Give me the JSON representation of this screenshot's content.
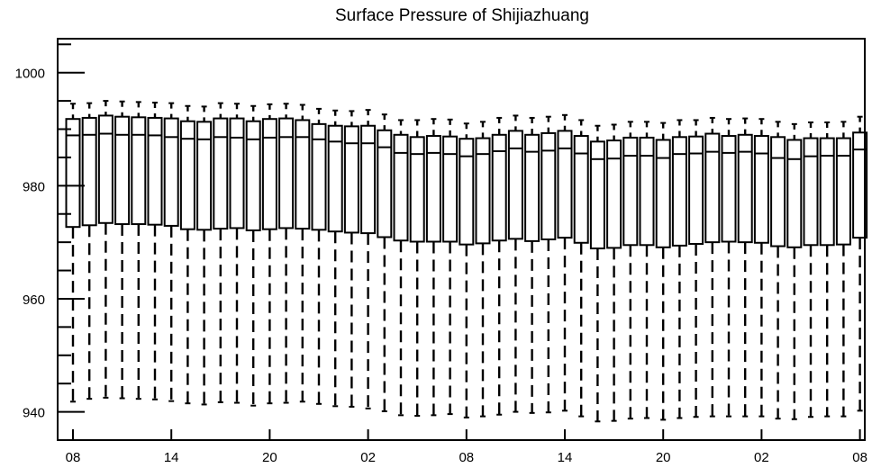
{
  "chart_data": {
    "type": "box",
    "title": "Surface Pressure of Shijiazhuang",
    "xlabel": "",
    "ylabel": "",
    "ylim": [
      935,
      1006
    ],
    "yticks": [
      940,
      960,
      980,
      1000
    ],
    "xtick_labels": [
      "08",
      "14",
      "20",
      "02",
      "08",
      "14",
      "20",
      "02",
      "08"
    ],
    "xtick_positions": [
      1,
      7,
      13,
      19,
      25,
      31,
      37,
      43,
      49
    ],
    "grid": false,
    "categories": [
      1,
      2,
      3,
      4,
      5,
      6,
      7,
      8,
      9,
      10,
      11,
      12,
      13,
      14,
      15,
      16,
      17,
      18,
      19,
      20,
      21,
      22,
      23,
      24,
      25,
      26,
      27,
      28,
      29,
      30,
      31,
      32,
      33,
      34,
      35,
      36,
      37,
      38,
      39,
      40,
      41,
      42,
      43,
      44,
      45,
      46,
      47,
      48,
      49
    ],
    "series": [
      {
        "q1": [
          972.7,
          973.0,
          973.4,
          973.2,
          973.2,
          973.1,
          972.9,
          972.3,
          972.2,
          972.4,
          972.5,
          972.1,
          972.3,
          972.5,
          972.4,
          972.2,
          971.9,
          971.7,
          971.6,
          970.9,
          970.3,
          970.1,
          970.1,
          970.1,
          969.6,
          969.8,
          970.3,
          970.6,
          970.2,
          970.5,
          970.8,
          969.9,
          968.9,
          969.0,
          969.5,
          969.5,
          969.1,
          969.4,
          969.7,
          970.0,
          970.1,
          970.0,
          969.9,
          969.3,
          969.1,
          969.5,
          969.5,
          969.6,
          970.8
        ],
        "median": [
          988.9,
          989.0,
          989.2,
          989.0,
          989.0,
          988.9,
          988.6,
          988.3,
          988.2,
          988.6,
          988.5,
          988.2,
          988.5,
          988.6,
          988.6,
          988.2,
          987.8,
          987.5,
          987.5,
          986.8,
          985.8,
          985.6,
          985.8,
          985.6,
          985.2,
          985.6,
          986.1,
          986.6,
          986.0,
          986.2,
          986.6,
          985.7,
          984.7,
          984.8,
          985.3,
          985.3,
          984.9,
          985.6,
          985.7,
          986.0,
          985.8,
          986.0,
          985.7,
          984.9,
          984.7,
          985.2,
          985.3,
          985.3,
          986.4
        ],
        "q3": [
          991.8,
          992.0,
          992.4,
          992.2,
          992.1,
          992.0,
          991.9,
          991.4,
          991.3,
          991.9,
          991.9,
          991.4,
          991.8,
          991.9,
          991.6,
          990.9,
          990.6,
          990.5,
          990.6,
          989.8,
          989.0,
          988.6,
          988.8,
          988.7,
          988.3,
          988.4,
          989.0,
          989.7,
          989.0,
          989.3,
          989.7,
          988.8,
          987.8,
          988.0,
          988.5,
          988.5,
          988.1,
          988.6,
          988.7,
          989.2,
          988.8,
          989.0,
          988.8,
          988.6,
          988.1,
          988.4,
          988.4,
          988.4,
          989.4
        ],
        "whisker_low": [
          941.8,
          942.3,
          942.5,
          942.4,
          942.3,
          942.2,
          941.9,
          941.5,
          941.3,
          941.7,
          941.6,
          941.1,
          941.5,
          941.6,
          941.8,
          941.4,
          941.0,
          940.9,
          940.6,
          940.1,
          939.4,
          939.3,
          939.4,
          939.6,
          939.0,
          939.2,
          939.5,
          940.0,
          939.8,
          939.9,
          940.2,
          939.2,
          938.3,
          938.4,
          938.8,
          938.9,
          938.6,
          938.9,
          939.1,
          939.2,
          939.2,
          939.2,
          939.2,
          938.8,
          938.7,
          939.1,
          939.2,
          939.2,
          940.2
        ],
        "whisker_high": [
          994.5,
          994.6,
          995.0,
          994.9,
          994.8,
          994.7,
          994.6,
          994.1,
          994.0,
          994.6,
          994.5,
          994.1,
          994.4,
          994.5,
          994.3,
          993.6,
          993.3,
          993.2,
          993.4,
          992.6,
          991.6,
          991.6,
          991.8,
          991.7,
          991.0,
          991.3,
          992.0,
          992.4,
          992.0,
          992.2,
          992.5,
          991.6,
          990.6,
          990.8,
          991.3,
          991.3,
          991.1,
          991.6,
          991.6,
          992.0,
          991.8,
          991.9,
          991.8,
          991.3,
          990.9,
          991.2,
          991.2,
          991.3,
          992.2
        ]
      }
    ]
  }
}
